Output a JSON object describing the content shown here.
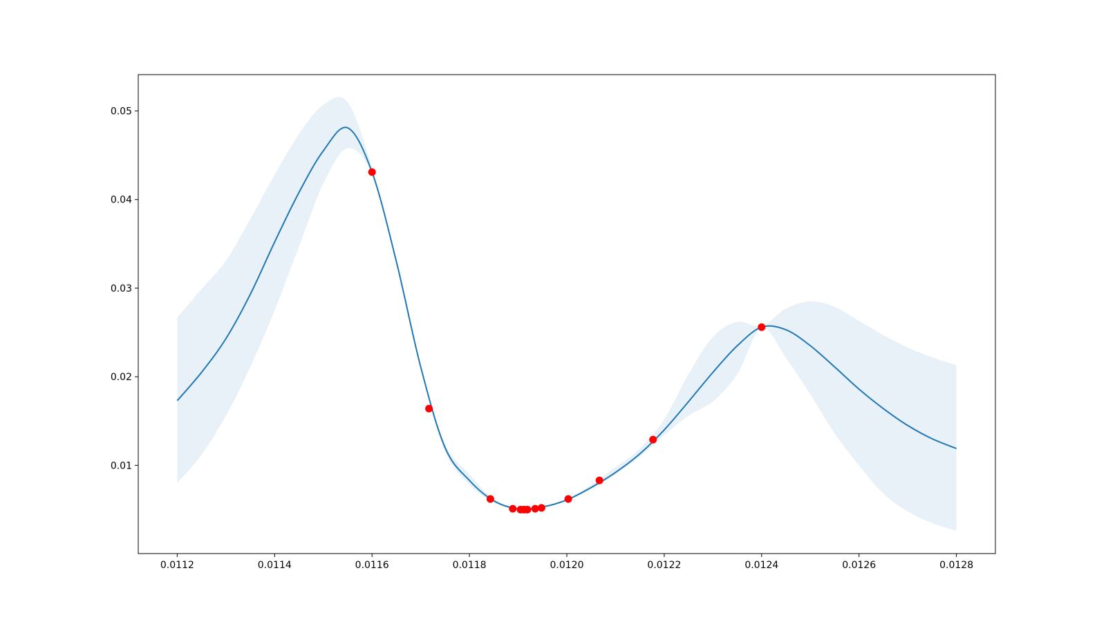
{
  "chart_data": {
    "type": "line",
    "x": [
      0.0112,
      0.01125,
      0.0113,
      0.01135,
      0.0114,
      0.01145,
      0.0115,
      0.01155,
      0.0116,
      0.01165,
      0.0117,
      0.01175,
      0.0118,
      0.01185,
      0.0119,
      0.01195,
      0.012,
      0.01205,
      0.0121,
      0.01215,
      0.0122,
      0.01225,
      0.0123,
      0.01235,
      0.0124,
      0.01245,
      0.0125,
      0.01255,
      0.0126,
      0.01265,
      0.0127,
      0.01275,
      0.0128
    ],
    "series": [
      {
        "color": "#1f77b4",
        "values": [
          0.0173,
          0.0205,
          0.0243,
          0.0293,
          0.0352,
          0.0408,
          0.0455,
          0.0481,
          0.0431,
          0.033,
          0.0211,
          0.012,
          0.0083,
          0.006,
          0.0051,
          0.0053,
          0.0061,
          0.0075,
          0.0092,
          0.0113,
          0.014,
          0.0172,
          0.0205,
          0.0235,
          0.0256,
          0.0253,
          0.0235,
          0.0211,
          0.0186,
          0.0164,
          0.0145,
          0.013,
          0.0119
        ]
      }
    ],
    "band": {
      "color": "#1f77b4",
      "alpha": 0.1,
      "upper": [
        0.0267,
        0.0299,
        0.0331,
        0.0378,
        0.0428,
        0.0474,
        0.0507,
        0.051,
        0.0436,
        0.0332,
        0.0213,
        0.0124,
        0.009,
        0.0062,
        0.0052,
        0.0054,
        0.0062,
        0.0078,
        0.0098,
        0.0119,
        0.0152,
        0.0203,
        0.0245,
        0.0262,
        0.0257,
        0.0277,
        0.0285,
        0.0279,
        0.0263,
        0.0247,
        0.0233,
        0.0222,
        0.0213
      ],
      "lower": [
        0.008,
        0.0112,
        0.0156,
        0.0211,
        0.0275,
        0.0347,
        0.0418,
        0.0458,
        0.0428,
        0.0328,
        0.0209,
        0.0116,
        0.0078,
        0.0058,
        0.005,
        0.0052,
        0.006,
        0.0073,
        0.009,
        0.011,
        0.0134,
        0.0156,
        0.0172,
        0.0203,
        0.0255,
        0.0221,
        0.018,
        0.0136,
        0.01,
        0.0068,
        0.0048,
        0.0035,
        0.0026
      ]
    },
    "points": {
      "color": "#ff0000",
      "x": [
        0.0116,
        0.011717,
        0.011843,
        0.011889,
        0.011905,
        0.011912,
        0.011919,
        0.011935,
        0.011948,
        0.012003,
        0.012067,
        0.012177,
        0.0124
      ],
      "y": [
        0.0431,
        0.0164,
        0.0062,
        0.0051,
        0.005,
        0.005,
        0.005,
        0.0051,
        0.0052,
        0.0062,
        0.0083,
        0.0129,
        0.0256
      ]
    },
    "xlim": [
      0.01112,
      0.01288
    ],
    "ylim": [
      4e-05,
      0.0541
    ],
    "xticks": [
      0.0112,
      0.0114,
      0.0116,
      0.0118,
      {
        "value": 0.012,
        "label": "0.0120"
      },
      0.0122,
      0.0124,
      0.0126,
      0.0128
    ],
    "yticks": [
      0.01,
      0.02,
      0.03,
      0.04,
      0.05
    ],
    "grid": false
  }
}
